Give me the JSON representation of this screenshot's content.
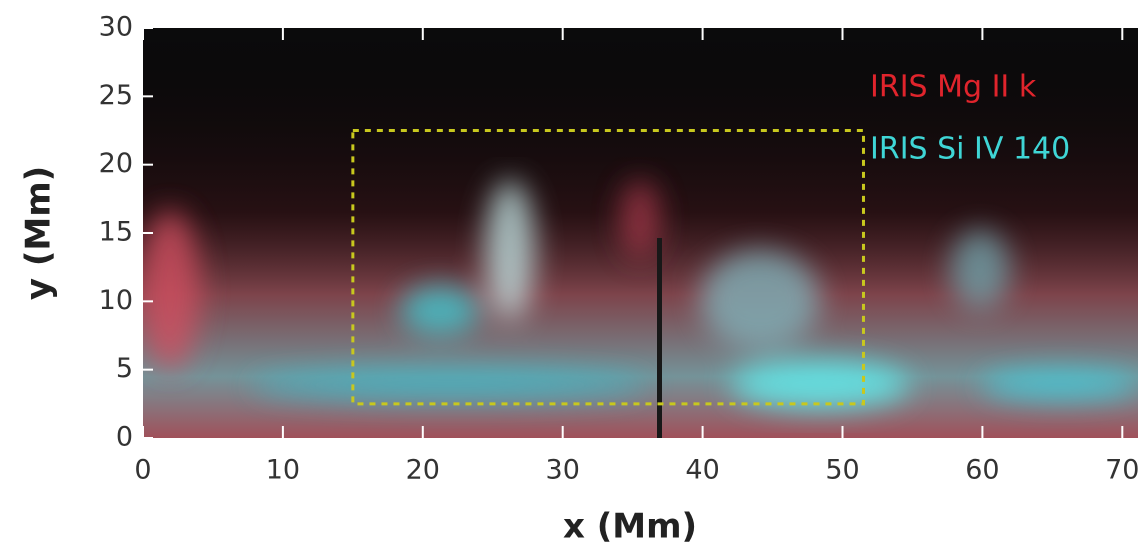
{
  "chart_data": {
    "type": "image",
    "xlabel": "x (Mm)",
    "ylabel": "y (Mm)",
    "xlim": [
      0,
      71
    ],
    "ylim": [
      0,
      30
    ],
    "xticks": [
      0,
      10,
      20,
      30,
      40,
      50,
      60,
      70
    ],
    "yticks": [
      0,
      5,
      10,
      15,
      20,
      25,
      30
    ],
    "labels": [
      {
        "text": "IRIS Mg II k",
        "color": "#e0242c"
      },
      {
        "text": "IRIS Si IV 140",
        "color": "#3fd6d6"
      }
    ],
    "box": {
      "x": [
        15,
        51.5
      ],
      "y": [
        2.5,
        22.5
      ],
      "color": "#c8c81e"
    }
  }
}
